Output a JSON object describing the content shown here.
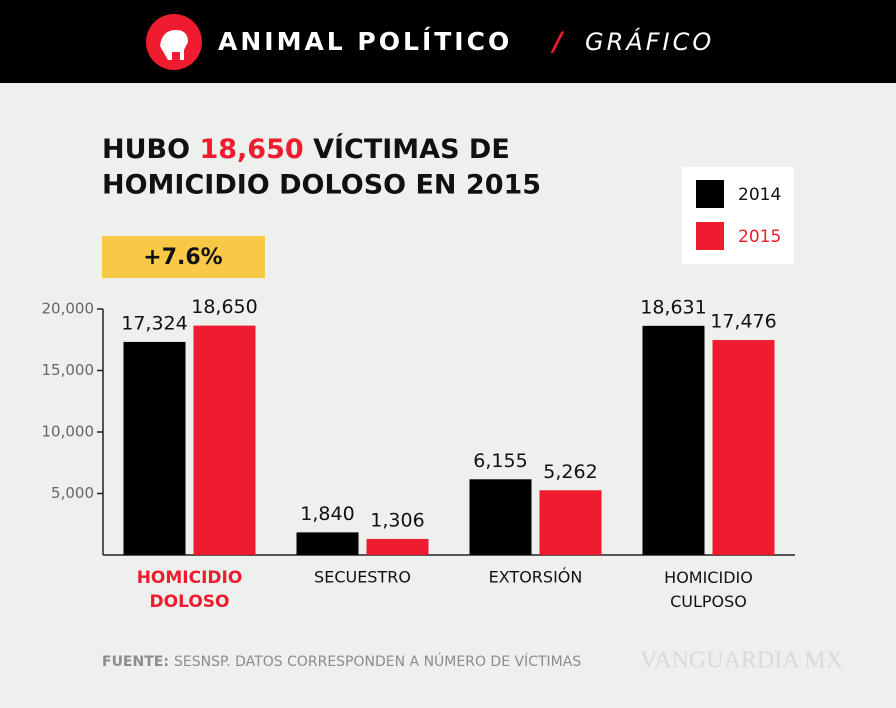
{
  "header": {
    "brand": "ANIMAL POLÍTICO",
    "separator": "/",
    "section": "GRÁFICO"
  },
  "chart_data": {
    "type": "bar",
    "title": [
      "HUBO",
      "18,650",
      "VÍCTIMAS DE",
      "HOMICIDIO DOLOSO EN 2015"
    ],
    "title_highlight_color": "#ee1c2e",
    "annotation": "+7.6%",
    "annotation_color": "#f8c947",
    "categories": [
      "HOMICIDIO DOLOSO",
      "SECUESTRO",
      "EXTORSIÓN",
      "HOMICIDIO CULPOSO"
    ],
    "category_colors": [
      "#ee1c2e",
      "#111111",
      "#111111",
      "#111111"
    ],
    "series": [
      {
        "name": "2014",
        "color": "#000000",
        "values": [
          17324,
          1840,
          6155,
          18631
        ],
        "value_labels": [
          "17,324",
          "1,840",
          "6,155",
          "18,631"
        ]
      },
      {
        "name": "2015",
        "color": "#ee1c2e",
        "values": [
          18650,
          1306,
          5262,
          17476
        ],
        "value_labels": [
          "18,650",
          "1,306",
          "5,262",
          "17,476"
        ]
      }
    ],
    "ylim": [
      0,
      20000
    ],
    "yticks": [
      {
        "value": 5000,
        "label": "5,000"
      },
      {
        "value": 10000,
        "label": "10,000"
      },
      {
        "value": 15000,
        "label": "15,000"
      },
      {
        "value": 20000,
        "label": "20,000"
      }
    ],
    "legend": "top-right",
    "source_label": "FUENTE:",
    "source": "SESNSP. DATOS CORRESPONDEN A NÚMERO DE VÍCTIMAS",
    "watermark": "VANGUARDIA MX"
  }
}
